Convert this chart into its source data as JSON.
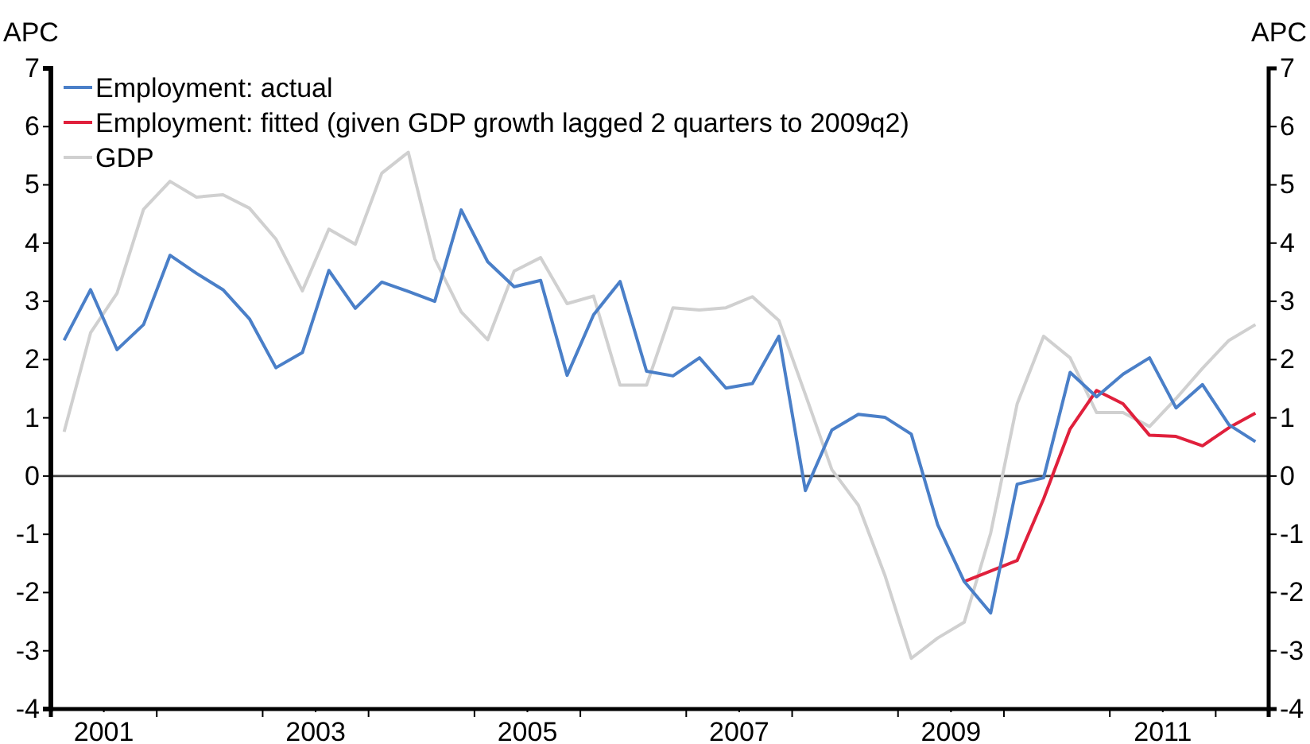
{
  "chart_data": {
    "type": "line",
    "ylabel": "APC",
    "y2label": "APC",
    "x": [
      2001.125,
      2001.375,
      2001.625,
      2001.875,
      2002.125,
      2002.375,
      2002.625,
      2002.875,
      2003.125,
      2003.375,
      2003.625,
      2003.875,
      2004.125,
      2004.375,
      2004.625,
      2004.875,
      2005.125,
      2005.375,
      2005.625,
      2005.875,
      2006.125,
      2006.375,
      2006.625,
      2006.875,
      2007.125,
      2007.375,
      2007.625,
      2007.875,
      2008.125,
      2008.375,
      2008.625,
      2008.875,
      2009.125,
      2009.375,
      2009.625,
      2009.875,
      2010.125,
      2010.375,
      2010.625,
      2010.875,
      2011.125,
      2011.375,
      2011.625,
      2011.875,
      2012.125,
      2012.375
    ],
    "series": [
      {
        "name": "Employment: actual",
        "color": "#4a7fc8",
        "values": [
          2.33,
          3.2,
          2.17,
          2.6,
          3.79,
          3.48,
          3.2,
          2.7,
          1.86,
          2.12,
          3.53,
          2.88,
          3.33,
          3.17,
          3.0,
          4.57,
          3.68,
          3.25,
          3.36,
          1.73,
          2.77,
          3.34,
          1.8,
          1.72,
          2.03,
          1.51,
          1.59,
          2.4,
          -0.25,
          0.79,
          1.06,
          1.01,
          0.72,
          -0.84,
          -1.81,
          -2.35,
          -0.14,
          -0.03,
          1.78,
          1.36,
          1.75,
          2.03,
          1.17,
          1.57,
          0.88,
          0.59
        ]
      },
      {
        "name": "Employment: fitted (given GDP growth lagged 2 quarters to 2009q2)",
        "color": "#e0203c",
        "values": [
          null,
          null,
          null,
          null,
          null,
          null,
          null,
          null,
          null,
          null,
          null,
          null,
          null,
          null,
          null,
          null,
          null,
          null,
          null,
          null,
          null,
          null,
          null,
          null,
          null,
          null,
          null,
          null,
          null,
          null,
          null,
          null,
          null,
          null,
          -1.81,
          -1.63,
          -1.45,
          -0.39,
          0.81,
          1.47,
          1.24,
          0.7,
          0.68,
          0.52,
          0.83,
          1.08
        ]
      },
      {
        "name": "GDP",
        "color": "#d0d0d0",
        "values": [
          0.76,
          2.46,
          3.14,
          4.58,
          5.06,
          4.79,
          4.83,
          4.6,
          4.07,
          3.18,
          4.24,
          3.98,
          5.2,
          5.56,
          3.73,
          2.82,
          2.34,
          3.52,
          3.75,
          2.96,
          3.09,
          1.56,
          1.56,
          2.89,
          2.85,
          2.89,
          3.08,
          2.67,
          1.4,
          0.11,
          -0.5,
          -1.7,
          -3.13,
          -2.78,
          -2.51,
          -0.98,
          1.24,
          2.4,
          2.03,
          1.09,
          1.09,
          0.85,
          1.33,
          1.85,
          2.33,
          2.6
        ]
      }
    ],
    "xlim": [
      2001,
      2012.5
    ],
    "xticks": [
      {
        "value": 2001,
        "label": null
      },
      {
        "value": 2001.5,
        "label": "2001"
      },
      {
        "value": 2002,
        "label": null
      },
      {
        "value": 2003,
        "label": null
      },
      {
        "value": 2003.5,
        "label": "2003"
      },
      {
        "value": 2004,
        "label": null
      },
      {
        "value": 2005,
        "label": null
      },
      {
        "value": 2005.5,
        "label": "2005"
      },
      {
        "value": 2006,
        "label": null
      },
      {
        "value": 2007,
        "label": null
      },
      {
        "value": 2007.5,
        "label": "2007"
      },
      {
        "value": 2008,
        "label": null
      },
      {
        "value": 2009,
        "label": null
      },
      {
        "value": 2009.5,
        "label": "2009"
      },
      {
        "value": 2010,
        "label": null
      },
      {
        "value": 2011,
        "label": null
      },
      {
        "value": 2011.5,
        "label": "2011"
      },
      {
        "value": 2012,
        "label": null
      }
    ],
    "ylim": [
      -4,
      7
    ],
    "yticks": [
      -4,
      -3,
      -2,
      -1,
      0,
      1,
      2,
      3,
      4,
      5,
      6,
      7
    ],
    "y2lim": [
      -4,
      7
    ],
    "y2ticks": [
      -4,
      -3,
      -2,
      -1,
      0,
      1,
      2,
      3,
      4,
      5,
      6,
      7
    ],
    "ref_lines": [
      {
        "axis": "y",
        "value": 0,
        "color": "#404040"
      }
    ],
    "legend": "top left",
    "grid": false,
    "marker": "none",
    "line_style": "solid"
  }
}
